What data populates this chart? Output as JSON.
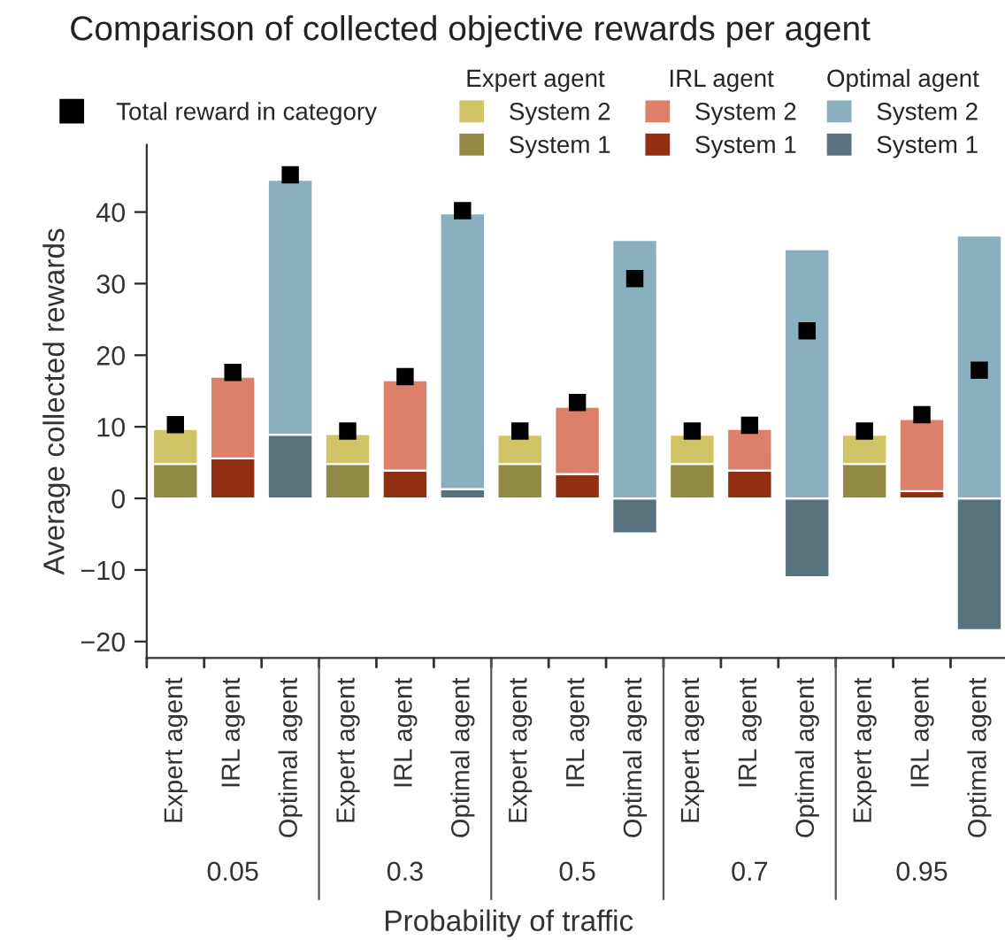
{
  "chart_data": {
    "type": "bar",
    "title": "Comparison of collected objective rewards per agent",
    "xlabel": "Probability of traffic",
    "ylabel": "Average collected rewards",
    "categories": [
      "Expert agent",
      "IRL agent",
      "Optimal agent",
      "Expert agent",
      "IRL agent",
      "Optimal agent",
      "Expert agent",
      "IRL agent",
      "Optimal agent",
      "Expert agent",
      "IRL agent",
      "Optimal agent",
      "Expert agent",
      "IRL agent",
      "Optimal agent"
    ],
    "annotations": [
      "0.05",
      "0.3",
      "0.5",
      "0.7",
      "0.95"
    ],
    "stacked": true,
    "series": [
      {
        "name": "System 1",
        "color": "#918a45",
        "values": [
          4.8,
          null,
          null,
          4.8,
          null,
          null,
          4.8,
          null,
          null,
          4.8,
          null,
          null,
          4.8,
          null,
          null
        ]
      },
      {
        "name": "System 2",
        "color": "#d0c466",
        "values": [
          4.9,
          null,
          null,
          4.2,
          null,
          null,
          4.1,
          null,
          null,
          4.1,
          null,
          null,
          4.1,
          null,
          null
        ]
      },
      {
        "name": "System 1",
        "color": "#922e12",
        "values": [
          null,
          5.6,
          null,
          null,
          3.9,
          null,
          null,
          3.4,
          null,
          null,
          3.9,
          null,
          null,
          1.0,
          null
        ]
      },
      {
        "name": "System 2",
        "color": "#dc806a",
        "values": [
          null,
          11.4,
          null,
          null,
          12.6,
          null,
          null,
          9.4,
          null,
          null,
          5.8,
          null,
          null,
          10.1,
          null
        ]
      },
      {
        "name": "System 1",
        "color": "#58737e",
        "values": [
          null,
          null,
          8.9,
          null,
          null,
          1.3,
          null,
          null,
          -4.9,
          null,
          null,
          -11.0,
          null,
          null,
          -18.4
        ]
      },
      {
        "name": "System 2",
        "color": "#8aafbe",
        "values": [
          null,
          null,
          35.6,
          null,
          null,
          38.5,
          null,
          null,
          36.1,
          null,
          null,
          34.8,
          null,
          null,
          36.7
        ]
      },
      {
        "name": "Total reward in category",
        "type": "scatter",
        "marker": "square",
        "color": "#000000",
        "values": [
          10.3,
          17.6,
          45.2,
          9.4,
          17.0,
          40.2,
          9.4,
          13.4,
          30.7,
          9.4,
          10.2,
          23.4,
          9.4,
          11.7,
          17.9
        ]
      }
    ],
    "ylim": [
      -22.3,
      49.4
    ],
    "yticks": [
      {
        "value": -20,
        "label": "−20"
      },
      {
        "value": -10,
        "label": "−10"
      },
      0,
      10,
      20,
      30,
      40
    ],
    "grid": false,
    "legend": "top"
  }
}
